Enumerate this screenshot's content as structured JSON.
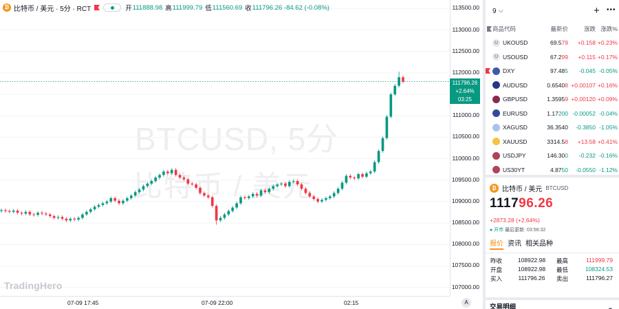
{
  "legend": {
    "symbol": "比特币 / 美元 · 5分 · RCT",
    "open_label": "开",
    "open_value": "111888.98",
    "high_label": "高",
    "high_value": "111999.79",
    "low_label": "低",
    "low_value": "111560.69",
    "close_label": "收",
    "close_value": "111796.26 -84.62 (-0.08%)"
  },
  "watermark": {
    "line1": "BTCUSD, 5分",
    "line2": "比特币 / 美元"
  },
  "brand": "TradingHero",
  "price_scale": {
    "ticks": [
      "113500.00",
      "113000.00",
      "112500.00",
      "112000.00",
      "111500.00",
      "111000.00",
      "110500.00",
      "110000.00",
      "109500.00",
      "109000.00",
      "108500.00",
      "108000.00",
      "107500.00",
      "107000.00"
    ],
    "tag_price": "111796.26",
    "tag_change": "+2.64%",
    "tag_time": "03:25"
  },
  "time_axis": {
    "labels": [
      "07-09 17:45",
      "07-09 22:00",
      "02:15"
    ],
    "auto_button": "A"
  },
  "chart_data": {
    "type": "candlestick",
    "y_range": [
      106800,
      113700
    ],
    "last_price": 111796.26,
    "colors": {
      "up": "#089981",
      "down": "#f23645"
    },
    "closes": [
      108800,
      108780,
      108760,
      108790,
      108740,
      108720,
      108760,
      108700,
      108690,
      108740,
      108720,
      108700,
      108660,
      108620,
      108640,
      108600,
      108560,
      108600,
      108580,
      108620,
      108700,
      108760,
      108820,
      108880,
      108920,
      108960,
      109000,
      109080,
      109020,
      108960,
      109020,
      109080,
      109140,
      109220,
      109280,
      109360,
      109420,
      109480,
      109560,
      109620,
      109700,
      109660,
      109740,
      109620,
      109560,
      109520,
      109420,
      109400,
      109320,
      109200,
      109140,
      109100,
      108900,
      108560,
      108620,
      108700,
      108780,
      108860,
      108960,
      109100,
      109080,
      109120,
      109180,
      109140,
      109260,
      109220,
      109300,
      109360,
      109400,
      109420,
      109360,
      109460,
      109480,
      109400,
      109300,
      109200,
      109120,
      109060,
      109000,
      109040,
      109080,
      109120,
      109200,
      109300,
      109440,
      109600,
      109560,
      109540,
      109640,
      109580,
      109660,
      109700,
      109920,
      110180,
      110480,
      110980,
      111500,
      111700,
      111900,
      111796
    ],
    "highs_offset": 40,
    "lows_offset": 40
  },
  "watchlist": {
    "name": "9",
    "add_icon": "plus-icon",
    "more_icon": "more-icon",
    "columns": {
      "symbol": "商品代码",
      "last": "最新价",
      "change": "涨跌",
      "pct": "涨跌%"
    },
    "rows": [
      {
        "symbol": "UKOUSD",
        "last_main": "69.5",
        "last_tail": "79",
        "change": "+0.158",
        "pct": "+0.23%",
        "dir": "up",
        "icon": "U",
        "icon_bg": "#e6e8ee",
        "flagged": false
      },
      {
        "symbol": "USOUSD",
        "last_main": "67.2",
        "last_tail": "99",
        "change": "+0.115",
        "pct": "+0.17%",
        "dir": "up",
        "icon": "U",
        "icon_bg": "#e6e8ee",
        "flagged": false
      },
      {
        "symbol": "DXY",
        "last_main": "97.48",
        "last_tail": "5",
        "change": "-0.045",
        "pct": "-0.05%",
        "dir": "down",
        "icon": "",
        "icon_bg": "#3c5aa8",
        "flagged": true
      },
      {
        "symbol": "AUDUSD",
        "last_main": "0.6540",
        "last_tail": "8",
        "change": "+0.00107",
        "pct": "+0.16%",
        "dir": "up",
        "icon": "",
        "icon_bg": "#26368c",
        "flagged": false
      },
      {
        "symbol": "GBPUSD",
        "last_main": "1.3595",
        "last_tail": "9",
        "change": "+0.00120",
        "pct": "+0.09%",
        "dir": "up",
        "icon": "",
        "icon_bg": "#8a2a4a",
        "flagged": false
      },
      {
        "symbol": "EURUSD",
        "last_main": "1.17",
        "last_tail": "200",
        "change": "-0.00052",
        "pct": "-0.04%",
        "dir": "down",
        "icon": "",
        "icon_bg": "#2f4aa0",
        "flagged": false
      },
      {
        "symbol": "XAGUSD",
        "last_main": "36.3540",
        "last_tail": "",
        "change": "-0.3850",
        "pct": "-1.05%",
        "dir": "down",
        "icon": "",
        "icon_bg": "#a9c4e8",
        "flagged": false
      },
      {
        "symbol": "XAUUSD",
        "last_main": "3314.5",
        "last_tail": "8",
        "change": "+13.58",
        "pct": "+0.41%",
        "dir": "up",
        "icon": "",
        "icon_bg": "#f5c342",
        "flagged": false
      },
      {
        "symbol": "USDJPY",
        "last_main": "146.30",
        "last_tail": "0",
        "change": "-0.232",
        "pct": "-0.16%",
        "dir": "down",
        "icon": "",
        "icon_bg": "#b0445a",
        "flagged": false
      },
      {
        "symbol": "US30YT",
        "last_main": "4.87",
        "last_tail": "50",
        "change": "-0.0550",
        "pct": "-1.12%",
        "dir": "down",
        "icon": "",
        "icon_bg": "#b0445a",
        "flagged": false
      }
    ]
  },
  "detail": {
    "name": "比特币 / 美元",
    "code": "BTCUSD",
    "price_main": "1117",
    "price_dec": "96.26",
    "change": "+2873.28 (+2.64%)",
    "status_label": "● 开市",
    "status_time": "最后更新: 03:56:32",
    "tabs": [
      "报价",
      "资讯",
      "相关品种"
    ],
    "stats": [
      {
        "k1": "昨收",
        "v1": "108922.98",
        "k2": "最高",
        "v2": "111999.79",
        "c2": "up"
      },
      {
        "k1": "开盘",
        "v1": "108922.98",
        "k2": "最低",
        "v2": "108324.53",
        "c2": "down"
      },
      {
        "k1": "买入",
        "v1": "111796.26",
        "k2": "卖出",
        "v2": "111796.27",
        "c2": ""
      }
    ],
    "trade_title": "交易明细"
  }
}
